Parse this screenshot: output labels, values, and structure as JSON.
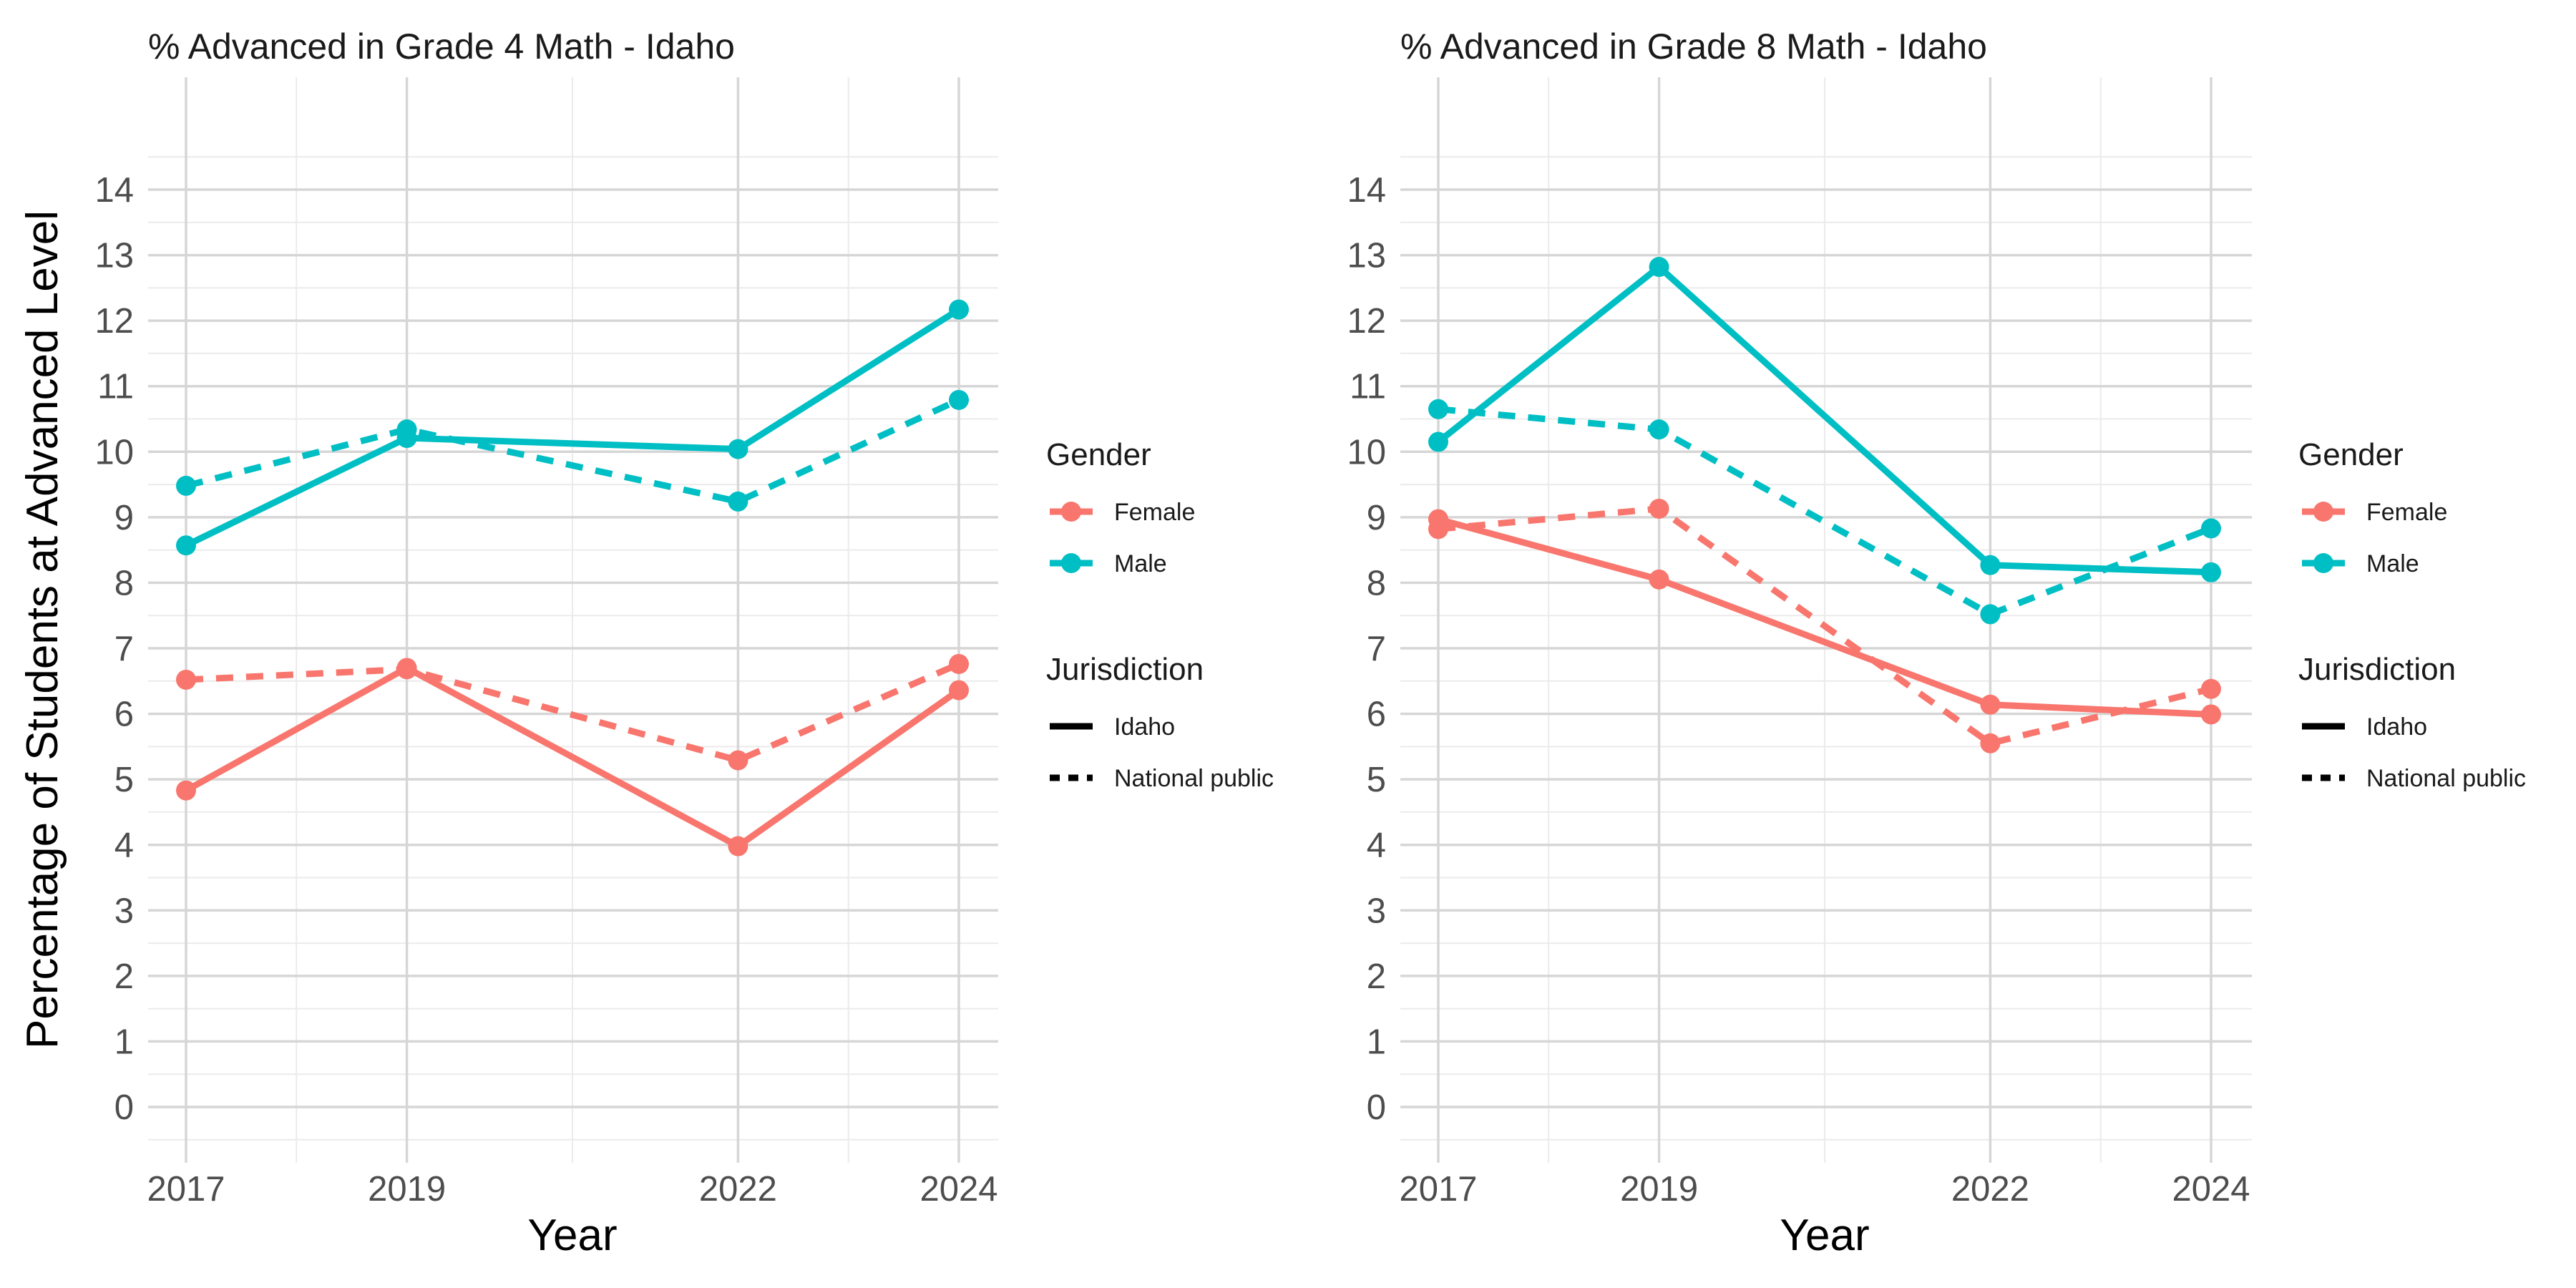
{
  "chart_data": [
    {
      "type": "line",
      "title": "% Advanced in Grade 4 Math - Idaho",
      "xlabel": "Year",
      "ylabel": "Percentage of Students at Advanced Level",
      "x": [
        2017,
        2019,
        2022,
        2024
      ],
      "x_tick_labels": [
        "2017",
        "2019",
        "2022",
        "2024"
      ],
      "y_ticks": [
        0,
        1,
        2,
        3,
        4,
        5,
        6,
        7,
        8,
        9,
        10,
        11,
        12,
        13,
        14
      ],
      "ylim": [
        -0.5,
        15.4
      ],
      "grid": true,
      "series": [
        {
          "name": "Female / Idaho",
          "gender": "Female",
          "jurisdiction": "Idaho",
          "values": [
            4.83,
            6.7,
            3.98,
            6.36
          ]
        },
        {
          "name": "Female / National public",
          "gender": "Female",
          "jurisdiction": "National public",
          "values": [
            6.52,
            6.68,
            5.29,
            6.76
          ]
        },
        {
          "name": "Male / Idaho",
          "gender": "Male",
          "jurisdiction": "Idaho",
          "values": [
            8.57,
            10.21,
            10.04,
            12.17
          ]
        },
        {
          "name": "Male / National public",
          "gender": "Male",
          "jurisdiction": "National public",
          "values": [
            9.48,
            10.34,
            9.24,
            10.79
          ]
        }
      ]
    },
    {
      "type": "line",
      "title": "% Advanced in Grade 8 Math - Idaho",
      "xlabel": "Year",
      "ylabel": "",
      "x": [
        2017,
        2019,
        2022,
        2024
      ],
      "x_tick_labels": [
        "2017",
        "2019",
        "2022",
        "2024"
      ],
      "y_ticks": [
        0,
        1,
        2,
        3,
        4,
        5,
        6,
        7,
        8,
        9,
        10,
        11,
        12,
        13,
        14
      ],
      "ylim": [
        -0.5,
        15.4
      ],
      "grid": true,
      "series": [
        {
          "name": "Female / Idaho",
          "gender": "Female",
          "jurisdiction": "Idaho",
          "values": [
            8.97,
            8.05,
            6.14,
            5.99
          ]
        },
        {
          "name": "Female / National public",
          "gender": "Female",
          "jurisdiction": "National public",
          "values": [
            8.82,
            9.13,
            5.55,
            6.38
          ]
        },
        {
          "name": "Male / Idaho",
          "gender": "Male",
          "jurisdiction": "Idaho",
          "values": [
            10.15,
            12.82,
            8.27,
            8.16
          ]
        },
        {
          "name": "Male / National public",
          "gender": "Male",
          "jurisdiction": "National public",
          "values": [
            10.65,
            10.34,
            7.52,
            8.83
          ]
        }
      ]
    }
  ],
  "legend": {
    "placement": "right",
    "gender_title": "Gender",
    "gender_items": [
      {
        "label": "Female",
        "color": "#F8766D"
      },
      {
        "label": "Male",
        "color": "#00BFC4"
      }
    ],
    "jurisdiction_title": "Jurisdiction",
    "jurisdiction_items": [
      {
        "label": "Idaho",
        "linetype": "solid"
      },
      {
        "label": "National public",
        "linetype": "dashed"
      }
    ]
  },
  "colors": {
    "Female": "#F8766D",
    "Male": "#00BFC4"
  }
}
